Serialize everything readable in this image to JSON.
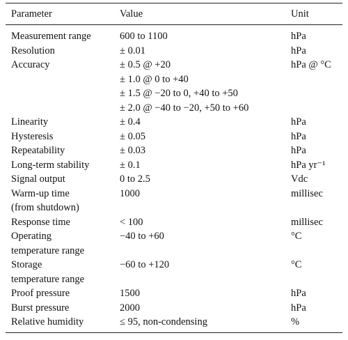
{
  "table": {
    "headers": [
      "Parameter",
      "Value",
      "Unit"
    ],
    "rows": [
      {
        "parameter": [
          "Measurement range"
        ],
        "value": [
          "600 to 1100"
        ],
        "unit": "hPa"
      },
      {
        "parameter": [
          "Resolution"
        ],
        "value": [
          "± 0.01"
        ],
        "unit": "hPa"
      },
      {
        "parameter": [
          "Accuracy"
        ],
        "value": [
          "± 0.5 @ +20",
          "± 1.0 @ 0 to +40",
          "± 1.5 @ −20 to 0, +40 to +50",
          "± 2.0 @ −40 to −20, +50 to +60"
        ],
        "unit": "hPa @ °C"
      },
      {
        "parameter": [
          "Linearity"
        ],
        "value": [
          "± 0.4"
        ],
        "unit": "hPa"
      },
      {
        "parameter": [
          "Hysteresis"
        ],
        "value": [
          "± 0.05"
        ],
        "unit": "hPa"
      },
      {
        "parameter": [
          "Repeatability"
        ],
        "value": [
          "± 0.03"
        ],
        "unit": "hPa"
      },
      {
        "parameter": [
          "Long-term stability"
        ],
        "value": [
          "± 0.1"
        ],
        "unit": "hPa yr⁻¹"
      },
      {
        "parameter": [
          "Signal output"
        ],
        "value": [
          "0 to 2.5"
        ],
        "unit": "Vdc"
      },
      {
        "parameter": [
          "Warm-up time",
          "(from shutdown)"
        ],
        "value": [
          "1000"
        ],
        "unit": "millisec"
      },
      {
        "parameter": [
          "Response time"
        ],
        "value": [
          "< 100"
        ],
        "unit": "millisec"
      },
      {
        "parameter": [
          "Operating",
          "temperature range"
        ],
        "value": [
          "−40 to +60"
        ],
        "unit": "°C"
      },
      {
        "parameter": [
          "Storage",
          "temperature range"
        ],
        "value": [
          "−60 to +120"
        ],
        "unit": "°C"
      },
      {
        "parameter": [
          "Proof pressure"
        ],
        "value": [
          "1500"
        ],
        "unit": "hPa"
      },
      {
        "parameter": [
          "Burst pressure"
        ],
        "value": [
          "2000"
        ],
        "unit": "hPa"
      },
      {
        "parameter": [
          "Relative humidity"
        ],
        "value": [
          "≤ 95, non-condensing"
        ],
        "unit": "%"
      }
    ]
  }
}
